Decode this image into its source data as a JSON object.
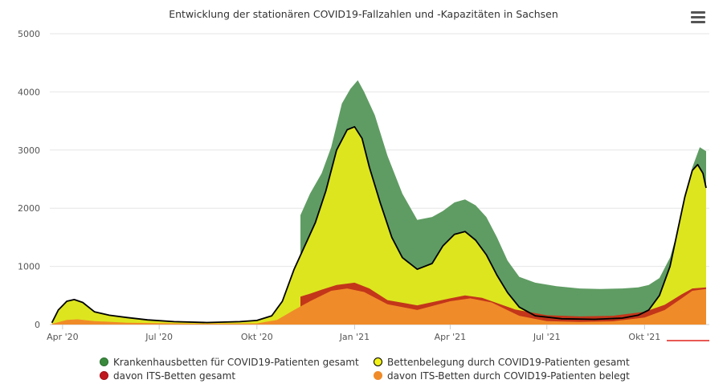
{
  "chart_data": {
    "type": "area",
    "title": "Entwicklung der stationären COVID19-Fallzahlen und -Kapazitäten in Sachsen",
    "xlabel": "",
    "ylabel": "",
    "ylim": [
      0,
      5000
    ],
    "yticks": [
      0,
      1000,
      2000,
      3000,
      4000,
      5000
    ],
    "xticks": [
      "Apr '20",
      "Jul '20",
      "Okt '20",
      "Jan '21",
      "Apr '21",
      "Jul '21",
      "Okt '21"
    ],
    "xtick_dates": [
      "2020-04-01",
      "2020-07-01",
      "2020-10-01",
      "2021-01-01",
      "2021-04-01",
      "2021-07-01",
      "2021-10-01"
    ],
    "xlim": [
      "2020-03-20",
      "2021-12-01"
    ],
    "grid": true,
    "legend_position": "bottom",
    "series": [
      {
        "name": "Krankenhausbetten für COVID19-Patienten gesamt",
        "color": "#3a8a3e",
        "points": [
          [
            "2020-11-11",
            1880
          ],
          [
            "2020-11-20",
            2250
          ],
          [
            "2020-12-01",
            2600
          ],
          [
            "2020-12-10",
            3050
          ],
          [
            "2020-12-20",
            3800
          ],
          [
            "2020-12-28",
            4050
          ],
          [
            "2021-01-04",
            4200
          ],
          [
            "2021-01-10",
            4000
          ],
          [
            "2021-01-20",
            3600
          ],
          [
            "2021-02-01",
            2900
          ],
          [
            "2021-02-15",
            2250
          ],
          [
            "2021-03-01",
            1800
          ],
          [
            "2021-03-15",
            1850
          ],
          [
            "2021-03-25",
            1950
          ],
          [
            "2021-04-05",
            2100
          ],
          [
            "2021-04-15",
            2150
          ],
          [
            "2021-04-25",
            2050
          ],
          [
            "2021-05-05",
            1850
          ],
          [
            "2021-05-15",
            1500
          ],
          [
            "2021-05-25",
            1100
          ],
          [
            "2021-06-05",
            820
          ],
          [
            "2021-06-20",
            720
          ],
          [
            "2021-07-10",
            660
          ],
          [
            "2021-08-01",
            620
          ],
          [
            "2021-08-20",
            610
          ],
          [
            "2021-09-10",
            620
          ],
          [
            "2021-09-25",
            640
          ],
          [
            "2021-10-05",
            680
          ],
          [
            "2021-10-15",
            800
          ],
          [
            "2021-10-25",
            1150
          ],
          [
            "2021-11-01",
            1600
          ],
          [
            "2021-11-08",
            2150
          ],
          [
            "2021-11-15",
            2700
          ],
          [
            "2021-11-22",
            3050
          ],
          [
            "2021-11-28",
            2980
          ]
        ]
      },
      {
        "name": "Bettenbelegung durch COVID19-Patienten gesamt",
        "color": "#e8ea13",
        "points": [
          [
            "2020-03-22",
            30
          ],
          [
            "2020-03-28",
            250
          ],
          [
            "2020-04-05",
            400
          ],
          [
            "2020-04-12",
            430
          ],
          [
            "2020-04-20",
            380
          ],
          [
            "2020-05-01",
            220
          ],
          [
            "2020-05-15",
            160
          ],
          [
            "2020-06-01",
            120
          ],
          [
            "2020-06-20",
            80
          ],
          [
            "2020-07-15",
            50
          ],
          [
            "2020-08-15",
            35
          ],
          [
            "2020-09-15",
            50
          ],
          [
            "2020-10-01",
            70
          ],
          [
            "2020-10-15",
            150
          ],
          [
            "2020-10-25",
            400
          ],
          [
            "2020-11-05",
            950
          ],
          [
            "2020-11-15",
            1350
          ],
          [
            "2020-11-25",
            1750
          ],
          [
            "2020-12-05",
            2300
          ],
          [
            "2020-12-15",
            3000
          ],
          [
            "2020-12-25",
            3350
          ],
          [
            "2021-01-01",
            3400
          ],
          [
            "2021-01-08",
            3200
          ],
          [
            "2021-01-15",
            2700
          ],
          [
            "2021-01-25",
            2100
          ],
          [
            "2021-02-05",
            1500
          ],
          [
            "2021-02-15",
            1150
          ],
          [
            "2021-03-01",
            950
          ],
          [
            "2021-03-15",
            1050
          ],
          [
            "2021-03-25",
            1350
          ],
          [
            "2021-04-05",
            1550
          ],
          [
            "2021-04-15",
            1600
          ],
          [
            "2021-04-25",
            1450
          ],
          [
            "2021-05-05",
            1200
          ],
          [
            "2021-05-15",
            850
          ],
          [
            "2021-05-25",
            550
          ],
          [
            "2021-06-05",
            300
          ],
          [
            "2021-06-20",
            150
          ],
          [
            "2021-07-15",
            100
          ],
          [
            "2021-08-15",
            90
          ],
          [
            "2021-09-10",
            110
          ],
          [
            "2021-09-25",
            160
          ],
          [
            "2021-10-05",
            250
          ],
          [
            "2021-10-15",
            500
          ],
          [
            "2021-10-25",
            1000
          ],
          [
            "2021-11-01",
            1600
          ],
          [
            "2021-11-08",
            2200
          ],
          [
            "2021-11-15",
            2650
          ],
          [
            "2021-11-20",
            2750
          ],
          [
            "2021-11-25",
            2600
          ],
          [
            "2021-11-28",
            2350
          ]
        ]
      },
      {
        "name": "davon ITS-Betten gesamt",
        "color": "#c0181f",
        "points": [
          [
            "2020-11-11",
            480
          ],
          [
            "2020-11-20",
            530
          ],
          [
            "2020-12-01",
            600
          ],
          [
            "2020-12-15",
            680
          ],
          [
            "2021-01-01",
            720
          ],
          [
            "2021-01-15",
            620
          ],
          [
            "2021-02-01",
            420
          ],
          [
            "2021-03-01",
            330
          ],
          [
            "2021-04-01",
            450
          ],
          [
            "2021-04-15",
            500
          ],
          [
            "2021-05-01",
            460
          ],
          [
            "2021-06-01",
            260
          ],
          [
            "2021-07-01",
            160
          ],
          [
            "2021-08-01",
            140
          ],
          [
            "2021-09-01",
            150
          ],
          [
            "2021-10-01",
            220
          ],
          [
            "2021-10-20",
            340
          ],
          [
            "2021-11-05",
            520
          ],
          [
            "2021-11-15",
            620
          ],
          [
            "2021-11-28",
            640
          ]
        ]
      },
      {
        "name": "davon ITS-Betten durch COVID19-Patienten belegt",
        "color": "#f08b29",
        "points": [
          [
            "2020-03-22",
            10
          ],
          [
            "2020-04-05",
            80
          ],
          [
            "2020-04-15",
            90
          ],
          [
            "2020-05-01",
            60
          ],
          [
            "2020-06-01",
            30
          ],
          [
            "2020-08-01",
            15
          ],
          [
            "2020-10-01",
            20
          ],
          [
            "2020-10-20",
            80
          ],
          [
            "2020-11-05",
            250
          ],
          [
            "2020-11-20",
            400
          ],
          [
            "2020-12-10",
            580
          ],
          [
            "2020-12-25",
            620
          ],
          [
            "2021-01-10",
            560
          ],
          [
            "2021-02-01",
            350
          ],
          [
            "2021-03-01",
            250
          ],
          [
            "2021-04-01",
            400
          ],
          [
            "2021-04-20",
            450
          ],
          [
            "2021-05-10",
            380
          ],
          [
            "2021-06-05",
            150
          ],
          [
            "2021-07-01",
            60
          ],
          [
            "2021-08-01",
            45
          ],
          [
            "2021-09-01",
            55
          ],
          [
            "2021-10-01",
            120
          ],
          [
            "2021-10-20",
            250
          ],
          [
            "2021-11-05",
            450
          ],
          [
            "2021-11-15",
            580
          ],
          [
            "2021-11-28",
            610
          ]
        ]
      }
    ]
  },
  "legend": {
    "items": [
      {
        "label": "Krankenhausbetten für COVID19-Patienten gesamt",
        "color": "#3a8a3e",
        "border": "#2b6e2f"
      },
      {
        "label": "Bettenbelegung durch COVID19-Patienten gesamt",
        "color": "#f2f21a",
        "border": "#000000"
      },
      {
        "label": "davon ITS-Betten gesamt",
        "color": "#c0181f",
        "border": "#a01018"
      },
      {
        "label": "davon ITS-Betten durch COVID19-Patienten belegt",
        "color": "#f08b29",
        "border": "#f08b29"
      }
    ]
  },
  "menu": {
    "icon": "hamburger-menu-icon"
  }
}
